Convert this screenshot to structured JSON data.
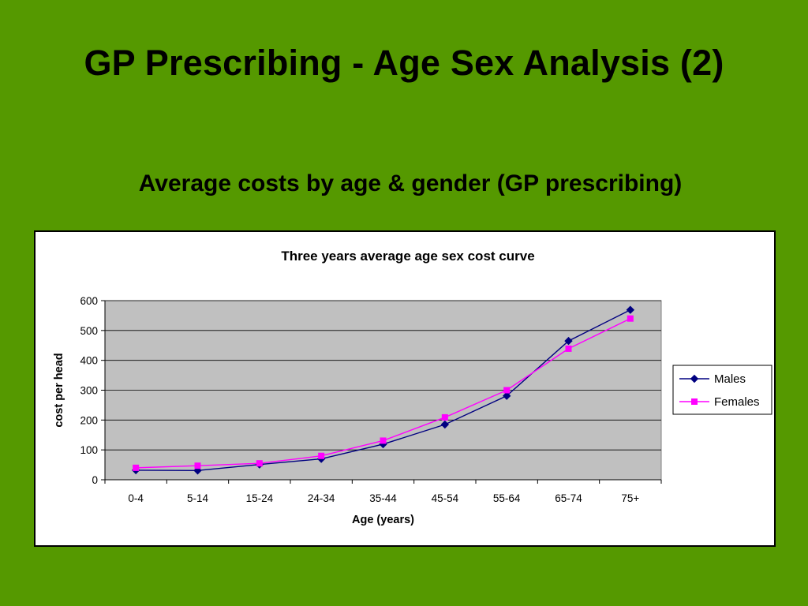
{
  "slide": {
    "title": "GP Prescribing - Age Sex Analysis (2)",
    "subtitle": "Average costs by age & gender (GP prescribing)"
  },
  "colors": {
    "background": "#559900",
    "plot_area": "#C0C0C0",
    "males": "#000080",
    "females": "#FF00FF"
  },
  "chart_data": {
    "type": "line",
    "title": "Three years average age sex cost curve",
    "xlabel": "Age (years)",
    "ylabel": "cost per head",
    "categories": [
      "0-4",
      "5-14",
      "15-24",
      "24-34",
      "35-44",
      "45-54",
      "55-64",
      "65-74",
      "75+"
    ],
    "ylim": [
      0,
      600
    ],
    "yticks": [
      0,
      100,
      200,
      300,
      400,
      500,
      600
    ],
    "grid": true,
    "legend_position": "right",
    "series": [
      {
        "name": "Males",
        "marker": "diamond",
        "color": "#000080",
        "values": [
          32,
          31,
          51,
          70,
          119,
          185,
          281,
          465,
          569
        ]
      },
      {
        "name": "Females",
        "marker": "square",
        "color": "#FF00FF",
        "values": [
          40,
          47,
          55,
          80,
          131,
          209,
          300,
          439,
          540
        ]
      }
    ]
  }
}
